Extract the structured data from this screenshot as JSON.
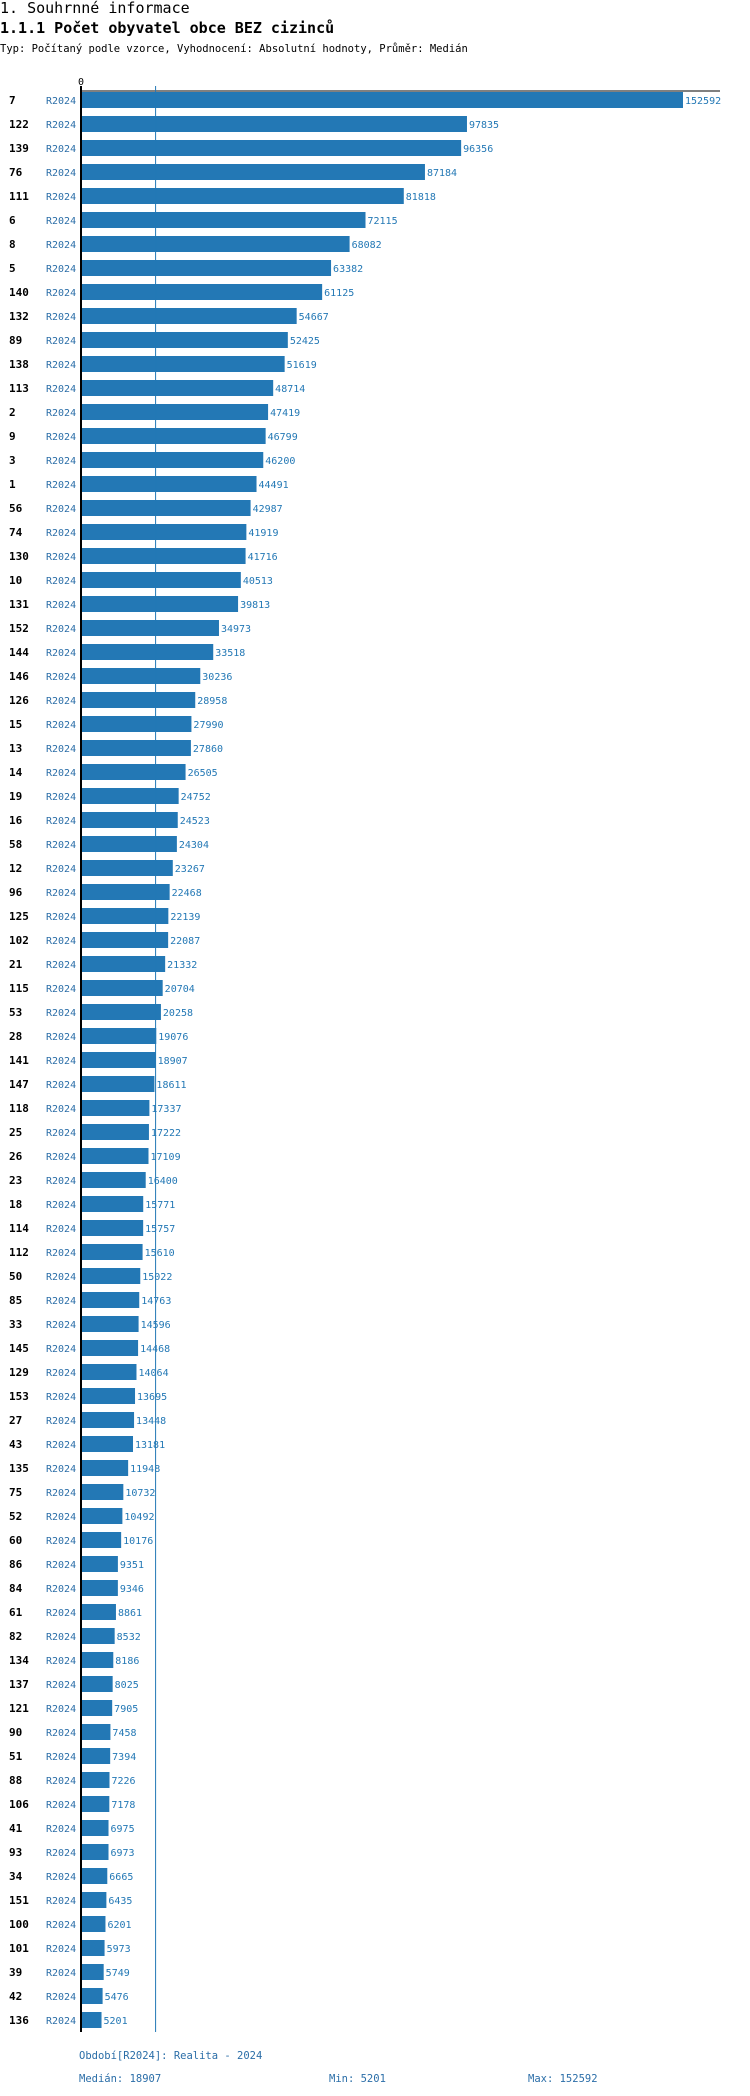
{
  "header": {
    "section_title": "1. Souhrnné informace",
    "chart_title": "1.1.1 Počet obyvatel obce BEZ cizinců",
    "subtitle": "Typ: Počítaný podle vzorce, Vyhodnocení: Absolutní hodnoty, Průměr: Medián"
  },
  "colors": {
    "bar": "#2378b5",
    "value_text": "#2378b5",
    "period_text": "#2b6ea8",
    "axis": "#000000",
    "median_line": "#2378b5"
  },
  "chart_data": {
    "type": "bar",
    "orientation": "horizontal",
    "title": "1.1.1 Počet obyvatel obce BEZ cizinců",
    "axis_zero_label": "0",
    "xlim": [
      0,
      152592
    ],
    "median": 18907,
    "series_period": "R2024",
    "rows": [
      {
        "id": "7",
        "period": "R2024",
        "value": 152592
      },
      {
        "id": "122",
        "period": "R2024",
        "value": 97835
      },
      {
        "id": "139",
        "period": "R2024",
        "value": 96356
      },
      {
        "id": "76",
        "period": "R2024",
        "value": 87184
      },
      {
        "id": "111",
        "period": "R2024",
        "value": 81818
      },
      {
        "id": "6",
        "period": "R2024",
        "value": 72115
      },
      {
        "id": "8",
        "period": "R2024",
        "value": 68082
      },
      {
        "id": "5",
        "period": "R2024",
        "value": 63382
      },
      {
        "id": "140",
        "period": "R2024",
        "value": 61125
      },
      {
        "id": "132",
        "period": "R2024",
        "value": 54667
      },
      {
        "id": "89",
        "period": "R2024",
        "value": 52425
      },
      {
        "id": "138",
        "period": "R2024",
        "value": 51619
      },
      {
        "id": "113",
        "period": "R2024",
        "value": 48714
      },
      {
        "id": "2",
        "period": "R2024",
        "value": 47419
      },
      {
        "id": "9",
        "period": "R2024",
        "value": 46799
      },
      {
        "id": "3",
        "period": "R2024",
        "value": 46200
      },
      {
        "id": "1",
        "period": "R2024",
        "value": 44491
      },
      {
        "id": "56",
        "period": "R2024",
        "value": 42987
      },
      {
        "id": "74",
        "period": "R2024",
        "value": 41919
      },
      {
        "id": "130",
        "period": "R2024",
        "value": 41716
      },
      {
        "id": "10",
        "period": "R2024",
        "value": 40513
      },
      {
        "id": "131",
        "period": "R2024",
        "value": 39813
      },
      {
        "id": "152",
        "period": "R2024",
        "value": 34973
      },
      {
        "id": "144",
        "period": "R2024",
        "value": 33518
      },
      {
        "id": "146",
        "period": "R2024",
        "value": 30236
      },
      {
        "id": "126",
        "period": "R2024",
        "value": 28958
      },
      {
        "id": "15",
        "period": "R2024",
        "value": 27990
      },
      {
        "id": "13",
        "period": "R2024",
        "value": 27860
      },
      {
        "id": "14",
        "period": "R2024",
        "value": 26505
      },
      {
        "id": "19",
        "period": "R2024",
        "value": 24752
      },
      {
        "id": "16",
        "period": "R2024",
        "value": 24523
      },
      {
        "id": "58",
        "period": "R2024",
        "value": 24304
      },
      {
        "id": "12",
        "period": "R2024",
        "value": 23267
      },
      {
        "id": "96",
        "period": "R2024",
        "value": 22468
      },
      {
        "id": "125",
        "period": "R2024",
        "value": 22139
      },
      {
        "id": "102",
        "period": "R2024",
        "value": 22087
      },
      {
        "id": "21",
        "period": "R2024",
        "value": 21332
      },
      {
        "id": "115",
        "period": "R2024",
        "value": 20704
      },
      {
        "id": "53",
        "period": "R2024",
        "value": 20258
      },
      {
        "id": "28",
        "period": "R2024",
        "value": 19076
      },
      {
        "id": "141",
        "period": "R2024",
        "value": 18907
      },
      {
        "id": "147",
        "period": "R2024",
        "value": 18611
      },
      {
        "id": "118",
        "period": "R2024",
        "value": 17337
      },
      {
        "id": "25",
        "period": "R2024",
        "value": 17222
      },
      {
        "id": "26",
        "period": "R2024",
        "value": 17109
      },
      {
        "id": "23",
        "period": "R2024",
        "value": 16400
      },
      {
        "id": "18",
        "period": "R2024",
        "value": 15771
      },
      {
        "id": "114",
        "period": "R2024",
        "value": 15757
      },
      {
        "id": "112",
        "period": "R2024",
        "value": 15610
      },
      {
        "id": "50",
        "period": "R2024",
        "value": 15022
      },
      {
        "id": "85",
        "period": "R2024",
        "value": 14763
      },
      {
        "id": "33",
        "period": "R2024",
        "value": 14596
      },
      {
        "id": "145",
        "period": "R2024",
        "value": 14468
      },
      {
        "id": "129",
        "period": "R2024",
        "value": 14064
      },
      {
        "id": "153",
        "period": "R2024",
        "value": 13695
      },
      {
        "id": "27",
        "period": "R2024",
        "value": 13448
      },
      {
        "id": "43",
        "period": "R2024",
        "value": 13181
      },
      {
        "id": "135",
        "period": "R2024",
        "value": 11948
      },
      {
        "id": "75",
        "period": "R2024",
        "value": 10732
      },
      {
        "id": "52",
        "period": "R2024",
        "value": 10492
      },
      {
        "id": "60",
        "period": "R2024",
        "value": 10176
      },
      {
        "id": "86",
        "period": "R2024",
        "value": 9351
      },
      {
        "id": "84",
        "period": "R2024",
        "value": 9346
      },
      {
        "id": "61",
        "period": "R2024",
        "value": 8861
      },
      {
        "id": "82",
        "period": "R2024",
        "value": 8532
      },
      {
        "id": "134",
        "period": "R2024",
        "value": 8186
      },
      {
        "id": "137",
        "period": "R2024",
        "value": 8025
      },
      {
        "id": "121",
        "period": "R2024",
        "value": 7905
      },
      {
        "id": "90",
        "period": "R2024",
        "value": 7458
      },
      {
        "id": "51",
        "period": "R2024",
        "value": 7394
      },
      {
        "id": "88",
        "period": "R2024",
        "value": 7226
      },
      {
        "id": "106",
        "period": "R2024",
        "value": 7178
      },
      {
        "id": "41",
        "period": "R2024",
        "value": 6975
      },
      {
        "id": "93",
        "period": "R2024",
        "value": 6973
      },
      {
        "id": "34",
        "period": "R2024",
        "value": 6665
      },
      {
        "id": "151",
        "period": "R2024",
        "value": 6435
      },
      {
        "id": "100",
        "period": "R2024",
        "value": 6201
      },
      {
        "id": "101",
        "period": "R2024",
        "value": 5973
      },
      {
        "id": "39",
        "period": "R2024",
        "value": 5749
      },
      {
        "id": "42",
        "period": "R2024",
        "value": 5476
      },
      {
        "id": "136",
        "period": "R2024",
        "value": 5201
      }
    ]
  },
  "footer": {
    "period_legend": "Období[R2024]: Realita - 2024",
    "median_text": "Medián: 18907",
    "min_text": "Min: 5201",
    "max_text": "Max: 152592"
  }
}
